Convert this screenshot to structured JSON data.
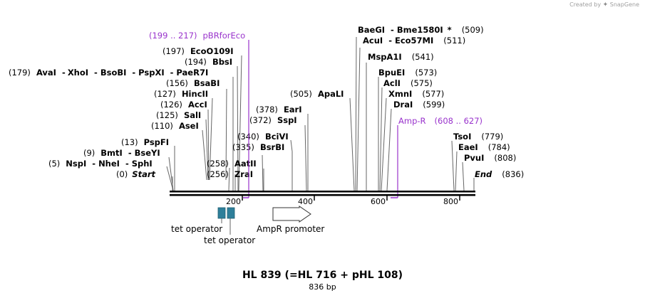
{
  "credit": {
    "text": "Created by",
    "brand": "SnapGene"
  },
  "title": "HL 839 (=HL 716 + pHL 108)",
  "subtitle": "836 bp",
  "sites": [
    {
      "pos": "(0)",
      "name": "Start"
    },
    {
      "pos": "(5)",
      "name": "NspI",
      "n2": "NheI",
      "n3": "SphI"
    },
    {
      "pos": "(9)",
      "name": "BmtI",
      "n2": "BseYI"
    },
    {
      "pos": "(13)",
      "name": "PspFI"
    },
    {
      "pos": "(110)",
      "name": "AseI"
    },
    {
      "pos": "(125)",
      "name": "SalI"
    },
    {
      "pos": "(126)",
      "name": "AccI"
    },
    {
      "pos": "(127)",
      "name": "HincII"
    },
    {
      "pos": "(156)",
      "name": "BsaBI"
    },
    {
      "pos": "(179)",
      "name": "AvaI",
      "n2": "XhoI",
      "n3": "BsoBI",
      "n4": "PspXI",
      "n5": "PaeR7I"
    },
    {
      "pos": "(194)",
      "name": "BbsI"
    },
    {
      "pos": "(197)",
      "name": "EcoO109I"
    },
    {
      "pos": "(256)",
      "name": "ZraI"
    },
    {
      "pos": "(258)",
      "name": "AatII"
    },
    {
      "pos": "(335)",
      "name": "BsrBI"
    },
    {
      "pos": "(340)",
      "name": "BciVI"
    },
    {
      "pos": "(372)",
      "name": "SspI"
    },
    {
      "pos": "(378)",
      "name": "EarI"
    },
    {
      "pos": "(505)",
      "name": "ApaLI"
    },
    {
      "pos": "(509)",
      "name": "BaeGI",
      "n2": "Bme1580I",
      "star": "*"
    },
    {
      "pos": "(511)",
      "name": "AcuI",
      "n2": "Eco57MI"
    },
    {
      "pos": "(541)",
      "name": "MspA1I"
    },
    {
      "pos": "(573)",
      "name": "BpuEI"
    },
    {
      "pos": "(575)",
      "name": "AclI"
    },
    {
      "pos": "(577)",
      "name": "XmnI"
    },
    {
      "pos": "(599)",
      "name": "DraI"
    },
    {
      "pos": "(779)",
      "name": "TsoI"
    },
    {
      "pos": "(784)",
      "name": "EaeI"
    },
    {
      "pos": "(808)",
      "name": "PvuI"
    },
    {
      "pos": "(836)",
      "name": "End"
    }
  ],
  "primers": [
    {
      "range": "(199 .. 217)",
      "name": "pBRforEco"
    },
    {
      "name": "Amp-R",
      "range": "(608 .. 627)"
    }
  ],
  "ruler": [
    "200",
    "400",
    "600",
    "800"
  ],
  "features": {
    "tet1": "tet operator",
    "tet2": "tet operator",
    "amp": "AmpR promoter"
  },
  "colors": {
    "primer": "#9933cc",
    "tet_operator": "#2e7f9a",
    "backbone": "#000000",
    "promoter_fill": "#ffffff"
  }
}
